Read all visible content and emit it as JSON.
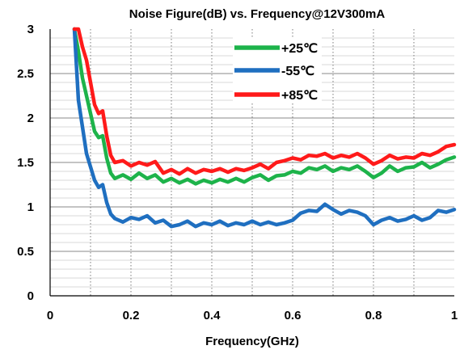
{
  "chart_data": {
    "type": "line",
    "title": "Noise Figure(dB) vs. Frequency@12V300mA",
    "xlabel": "Frequency(GHz)",
    "ylabel": "",
    "xlim": [
      0,
      1
    ],
    "ylim": [
      0,
      3
    ],
    "x_ticks": [
      "0",
      "0.2",
      "0.4",
      "0.6",
      "0.8",
      "1"
    ],
    "y_ticks": [
      "0",
      "0.5",
      "1",
      "1.5",
      "2",
      "2.5",
      "3"
    ],
    "grid": {
      "vertical_minor": "dotted",
      "horizontal_minor": "solid-light"
    },
    "legend": {
      "position": "top-right"
    },
    "series": [
      {
        "name": "+25℃",
        "color": "#1db34a",
        "x": [
          0.06,
          0.07,
          0.08,
          0.09,
          0.1,
          0.11,
          0.12,
          0.13,
          0.14,
          0.15,
          0.16,
          0.18,
          0.2,
          0.22,
          0.24,
          0.26,
          0.28,
          0.3,
          0.32,
          0.34,
          0.36,
          0.38,
          0.4,
          0.42,
          0.44,
          0.46,
          0.48,
          0.5,
          0.52,
          0.54,
          0.56,
          0.58,
          0.6,
          0.62,
          0.64,
          0.66,
          0.68,
          0.7,
          0.72,
          0.74,
          0.76,
          0.78,
          0.8,
          0.82,
          0.84,
          0.86,
          0.88,
          0.9,
          0.92,
          0.94,
          0.96,
          0.98,
          1.0
        ],
        "values": [
          3.0,
          2.75,
          2.45,
          2.25,
          2.05,
          1.85,
          1.78,
          1.8,
          1.55,
          1.38,
          1.32,
          1.36,
          1.31,
          1.38,
          1.32,
          1.36,
          1.28,
          1.32,
          1.27,
          1.31,
          1.26,
          1.3,
          1.27,
          1.31,
          1.28,
          1.32,
          1.28,
          1.33,
          1.36,
          1.3,
          1.35,
          1.36,
          1.4,
          1.38,
          1.44,
          1.42,
          1.46,
          1.4,
          1.44,
          1.42,
          1.46,
          1.4,
          1.33,
          1.38,
          1.46,
          1.4,
          1.44,
          1.45,
          1.5,
          1.44,
          1.48,
          1.53,
          1.56
        ]
      },
      {
        "name": "-55℃",
        "color": "#1f6fc0",
        "x": [
          0.06,
          0.07,
          0.08,
          0.09,
          0.1,
          0.11,
          0.12,
          0.13,
          0.14,
          0.15,
          0.16,
          0.18,
          0.2,
          0.22,
          0.24,
          0.26,
          0.28,
          0.3,
          0.32,
          0.34,
          0.36,
          0.38,
          0.4,
          0.42,
          0.44,
          0.46,
          0.48,
          0.5,
          0.52,
          0.54,
          0.56,
          0.58,
          0.6,
          0.62,
          0.64,
          0.66,
          0.68,
          0.7,
          0.72,
          0.74,
          0.76,
          0.78,
          0.8,
          0.82,
          0.84,
          0.86,
          0.88,
          0.9,
          0.92,
          0.94,
          0.96,
          0.98,
          1.0
        ],
        "values": [
          3.0,
          2.2,
          1.9,
          1.6,
          1.45,
          1.3,
          1.22,
          1.25,
          1.05,
          0.92,
          0.87,
          0.83,
          0.88,
          0.86,
          0.9,
          0.82,
          0.85,
          0.78,
          0.8,
          0.84,
          0.78,
          0.82,
          0.8,
          0.84,
          0.79,
          0.82,
          0.8,
          0.84,
          0.8,
          0.83,
          0.8,
          0.82,
          0.85,
          0.93,
          0.96,
          0.95,
          1.03,
          0.97,
          0.92,
          0.96,
          0.94,
          0.9,
          0.8,
          0.85,
          0.88,
          0.84,
          0.86,
          0.9,
          0.85,
          0.88,
          0.96,
          0.94,
          0.97
        ]
      },
      {
        "name": "+85℃",
        "color": "#ff1a1a",
        "x": [
          0.06,
          0.07,
          0.08,
          0.09,
          0.1,
          0.11,
          0.12,
          0.13,
          0.14,
          0.15,
          0.16,
          0.18,
          0.2,
          0.22,
          0.24,
          0.26,
          0.28,
          0.3,
          0.32,
          0.34,
          0.36,
          0.38,
          0.4,
          0.42,
          0.44,
          0.46,
          0.48,
          0.5,
          0.52,
          0.54,
          0.56,
          0.58,
          0.6,
          0.62,
          0.64,
          0.66,
          0.68,
          0.7,
          0.72,
          0.74,
          0.76,
          0.78,
          0.8,
          0.82,
          0.84,
          0.86,
          0.88,
          0.9,
          0.92,
          0.94,
          0.96,
          0.98,
          1.0
        ],
        "values": [
          3.0,
          3.0,
          2.8,
          2.65,
          2.4,
          2.15,
          2.05,
          2.08,
          1.8,
          1.58,
          1.5,
          1.52,
          1.46,
          1.5,
          1.47,
          1.51,
          1.38,
          1.42,
          1.37,
          1.43,
          1.38,
          1.42,
          1.4,
          1.43,
          1.39,
          1.43,
          1.41,
          1.44,
          1.48,
          1.43,
          1.5,
          1.52,
          1.55,
          1.53,
          1.58,
          1.57,
          1.6,
          1.55,
          1.58,
          1.56,
          1.6,
          1.55,
          1.48,
          1.52,
          1.58,
          1.54,
          1.56,
          1.55,
          1.6,
          1.58,
          1.62,
          1.68,
          1.7
        ]
      }
    ]
  }
}
